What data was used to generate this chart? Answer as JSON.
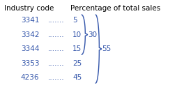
{
  "title_left": "Industry code",
  "title_right": "Percentage of total sales",
  "rows": [
    {
      "code": "3341",
      "dots": ".......",
      "value": "5"
    },
    {
      "code": "3342",
      "dots": ".......",
      "value": "10"
    },
    {
      "code": "3344",
      "dots": ".......",
      "value": "15"
    },
    {
      "code": "3353",
      "dots": ".......",
      "value": "25"
    },
    {
      "code": "4236",
      "dots": ".......",
      "value": "45"
    }
  ],
  "bracket1_label": "30",
  "bracket2_label": "55",
  "text_color": "#3355aa",
  "bracket_color": "#3355aa",
  "bg_color": "#ffffff",
  "fontsize": 7.5,
  "title_fontsize": 7.5
}
